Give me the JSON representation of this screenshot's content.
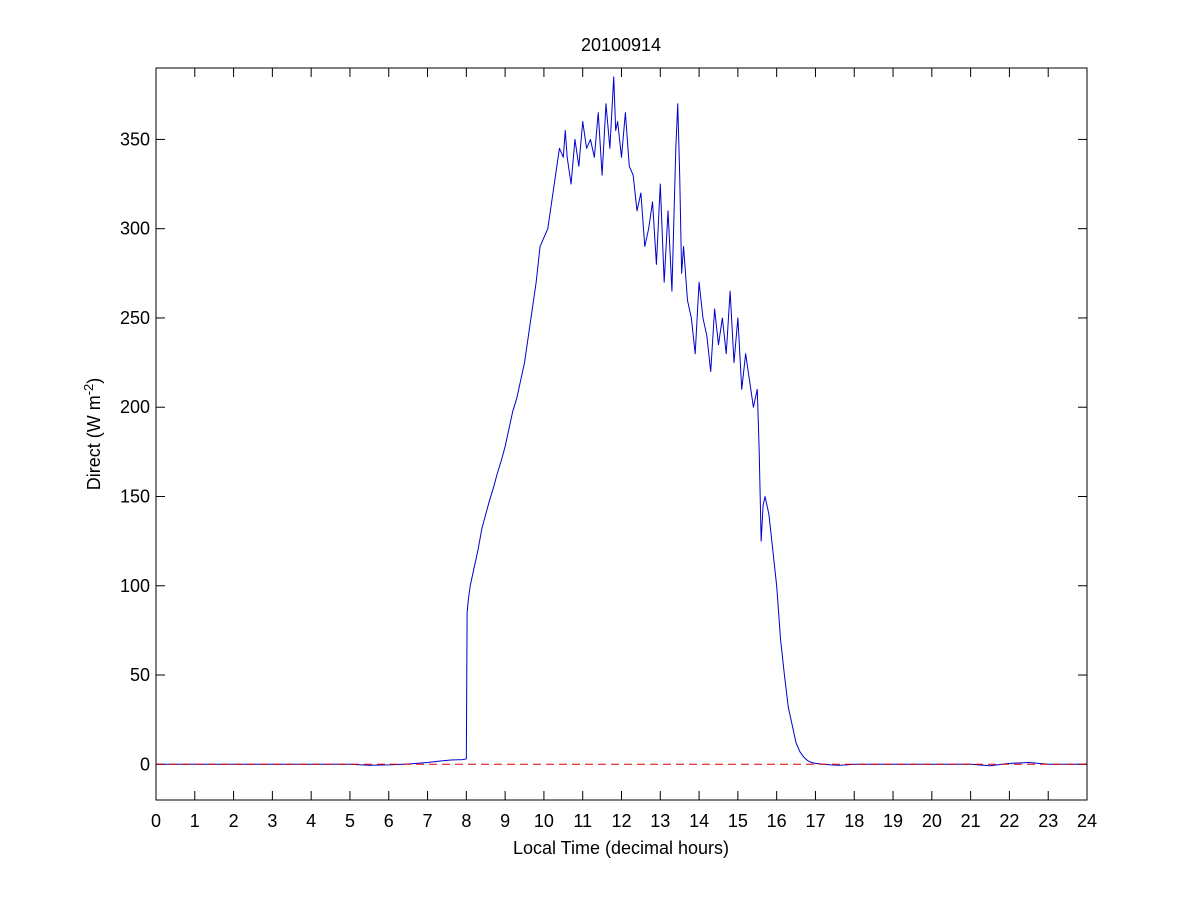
{
  "chart_data": {
    "type": "line",
    "title": "20100914",
    "xlabel": "Local Time (decimal hours)",
    "ylabel_main": "Direct (W m",
    "ylabel_sup": "-2",
    "ylabel_end": ")",
    "xlim": [
      0,
      24
    ],
    "ylim": [
      -20,
      390
    ],
    "xticks": [
      0,
      1,
      2,
      3,
      4,
      5,
      6,
      7,
      8,
      9,
      10,
      11,
      12,
      13,
      14,
      15,
      16,
      17,
      18,
      19,
      20,
      21,
      22,
      23,
      24
    ],
    "yticks": [
      0,
      50,
      100,
      150,
      200,
      250,
      300,
      350
    ],
    "grid": false,
    "series": [
      {
        "color": "#0000cc",
        "style": "solid",
        "x": [
          0,
          1,
          2,
          3,
          4,
          5,
          5.5,
          6,
          6.5,
          7,
          7.3,
          7.6,
          7.9,
          7.95,
          8.0,
          8.02,
          8.05,
          8.1,
          8.2,
          8.3,
          8.4,
          8.5,
          8.6,
          8.7,
          8.8,
          8.9,
          9.0,
          9.1,
          9.2,
          9.3,
          9.4,
          9.5,
          9.6,
          9.7,
          9.8,
          9.9,
          10.0,
          10.1,
          10.2,
          10.3,
          10.4,
          10.5,
          10.55,
          10.6,
          10.7,
          10.8,
          10.9,
          11.0,
          11.1,
          11.2,
          11.3,
          11.4,
          11.5,
          11.6,
          11.7,
          11.8,
          11.85,
          11.9,
          12.0,
          12.1,
          12.2,
          12.3,
          12.4,
          12.5,
          12.6,
          12.7,
          12.8,
          12.9,
          13.0,
          13.1,
          13.2,
          13.3,
          13.4,
          13.45,
          13.5,
          13.55,
          13.6,
          13.7,
          13.8,
          13.9,
          14.0,
          14.1,
          14.2,
          14.3,
          14.4,
          14.5,
          14.6,
          14.7,
          14.8,
          14.9,
          15.0,
          15.1,
          15.2,
          15.3,
          15.4,
          15.5,
          15.55,
          15.6,
          15.65,
          15.7,
          15.8,
          15.9,
          16.0,
          16.1,
          16.2,
          16.3,
          16.4,
          16.5,
          16.6,
          16.7,
          16.8,
          16.9,
          17.0,
          17.2,
          17.4,
          17.6,
          17.8,
          18.0,
          19,
          20,
          21,
          21.5,
          22,
          22.5,
          23,
          24
        ],
        "y": [
          0,
          0,
          0,
          0,
          0,
          0,
          -0.5,
          -0.3,
          0.2,
          1,
          1.8,
          2.4,
          2.6,
          2.8,
          3,
          85,
          92,
          100,
          110,
          120,
          132,
          140,
          148,
          155,
          163,
          170,
          178,
          188,
          198,
          205,
          215,
          225,
          240,
          255,
          270,
          290,
          295,
          300,
          315,
          330,
          345,
          340,
          355,
          340,
          325,
          350,
          335,
          360,
          345,
          350,
          340,
          365,
          330,
          370,
          345,
          385,
          355,
          360,
          340,
          365,
          335,
          330,
          310,
          320,
          290,
          300,
          315,
          280,
          325,
          270,
          310,
          265,
          345,
          370,
          330,
          275,
          290,
          260,
          250,
          230,
          270,
          250,
          240,
          220,
          255,
          235,
          250,
          230,
          265,
          225,
          250,
          210,
          230,
          215,
          200,
          210,
          175,
          125,
          145,
          150,
          140,
          120,
          100,
          70,
          50,
          32,
          22,
          12,
          7,
          4,
          2,
          1,
          0.5,
          0,
          -0.3,
          -0.5,
          -0.3,
          0,
          0,
          0,
          0,
          -0.8,
          0.5,
          1,
          0,
          0
        ]
      },
      {
        "color": "#dd0000",
        "style": "dashed",
        "x": [
          0,
          24
        ],
        "y": [
          0,
          0
        ]
      }
    ]
  }
}
